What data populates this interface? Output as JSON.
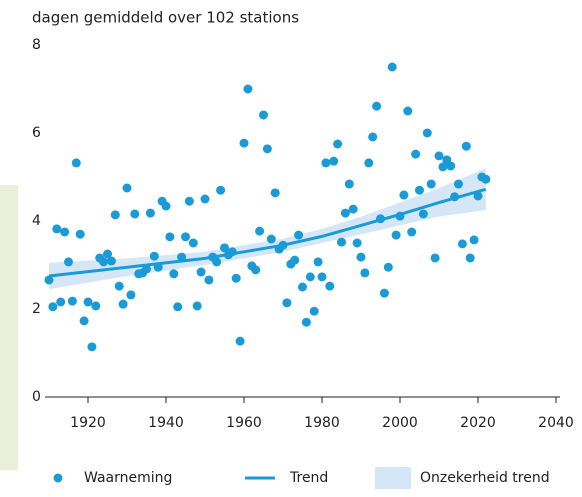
{
  "chart_data": {
    "type": "scatter",
    "ylabel": "dagen gemiddeld over 102 stations",
    "xlim": [
      1910,
      2040
    ],
    "xticks": [
      1920,
      1940,
      1960,
      1980,
      2000,
      2020,
      2040
    ],
    "ylim": [
      0,
      8
    ],
    "yticks": [
      0,
      2,
      4,
      6,
      8
    ],
    "grid": false,
    "series": [
      {
        "name": "Onzekerheid trend",
        "type": "band",
        "color": "#d5e7f7",
        "x": [
          1910,
          1930,
          1950,
          1960,
          1970,
          1980,
          1990,
          2000,
          2010,
          2022
        ],
        "lower": [
          2.45,
          2.75,
          3.0,
          3.15,
          3.3,
          3.5,
          3.7,
          3.9,
          4.1,
          4.25
        ],
        "upper": [
          3.05,
          3.15,
          3.3,
          3.45,
          3.6,
          3.82,
          4.1,
          4.42,
          4.75,
          5.2
        ]
      },
      {
        "name": "Trend",
        "type": "line",
        "color": "#1a9bd7",
        "x": [
          1910,
          1930,
          1950,
          1960,
          1970,
          1980,
          1990,
          2000,
          2010,
          2022
        ],
        "values": [
          2.75,
          2.95,
          3.15,
          3.3,
          3.45,
          3.65,
          3.9,
          4.15,
          4.42,
          4.72
        ]
      },
      {
        "name": "Waarneming",
        "type": "scatter",
        "color": "#1a9bd7",
        "x": [
          1910,
          1911,
          1912,
          1913,
          1914,
          1915,
          1916,
          1917,
          1918,
          1919,
          1920,
          1921,
          1922,
          1923,
          1924,
          1925,
          1926,
          1927,
          1928,
          1929,
          1930,
          1931,
          1932,
          1933,
          1934,
          1935,
          1936,
          1937,
          1938,
          1939,
          1940,
          1941,
          1942,
          1943,
          1944,
          1945,
          1946,
          1947,
          1948,
          1949,
          1950,
          1951,
          1952,
          1953,
          1954,
          1955,
          1956,
          1957,
          1958,
          1959,
          1960,
          1961,
          1962,
          1963,
          1964,
          1965,
          1966,
          1967,
          1968,
          1969,
          1970,
          1971,
          1972,
          1973,
          1974,
          1975,
          1976,
          1977,
          1978,
          1979,
          1980,
          1981,
          1982,
          1983,
          1984,
          1985,
          1986,
          1987,
          1988,
          1989,
          1990,
          1991,
          1992,
          1993,
          1994,
          1995,
          1996,
          1997,
          1998,
          1999,
          2000,
          2001,
          2002,
          2003,
          2004,
          2005,
          2006,
          2007,
          2008,
          2009,
          2010,
          2011,
          2012,
          2013,
          2014,
          2015,
          2016,
          2017,
          2018,
          2019,
          2020,
          2021,
          2022
        ],
        "values": [
          2.66,
          2.05,
          3.82,
          2.16,
          3.75,
          3.07,
          2.18,
          5.32,
          3.7,
          1.73,
          2.16,
          1.14,
          2.07,
          3.16,
          3.07,
          3.25,
          3.09,
          4.14,
          2.52,
          2.11,
          4.75,
          2.32,
          4.16,
          2.8,
          2.82,
          2.91,
          4.18,
          3.2,
          2.95,
          4.45,
          4.34,
          3.64,
          2.8,
          2.05,
          3.18,
          3.64,
          4.45,
          3.5,
          2.07,
          2.84,
          4.5,
          2.66,
          3.18,
          3.07,
          4.7,
          3.39,
          3.23,
          3.3,
          2.7,
          1.27,
          5.77,
          7.0,
          2.98,
          2.89,
          3.77,
          6.41,
          5.64,
          3.59,
          4.64,
          3.36,
          3.45,
          2.14,
          3.02,
          3.11,
          3.68,
          2.5,
          1.7,
          2.73,
          1.95,
          3.07,
          2.73,
          5.32,
          2.52,
          5.36,
          5.75,
          3.52,
          4.18,
          4.84,
          4.27,
          3.5,
          3.18,
          2.82,
          5.32,
          5.91,
          6.61,
          4.05,
          2.36,
          2.95,
          7.5,
          3.68,
          4.11,
          4.59,
          6.5,
          3.75,
          5.52,
          4.7,
          4.16,
          6.0,
          4.84,
          3.16,
          5.48,
          5.23,
          5.39,
          5.25,
          4.55,
          4.84,
          3.48,
          5.7,
          3.16,
          3.57,
          4.57,
          5.0,
          4.95
        ]
      }
    ]
  }
}
